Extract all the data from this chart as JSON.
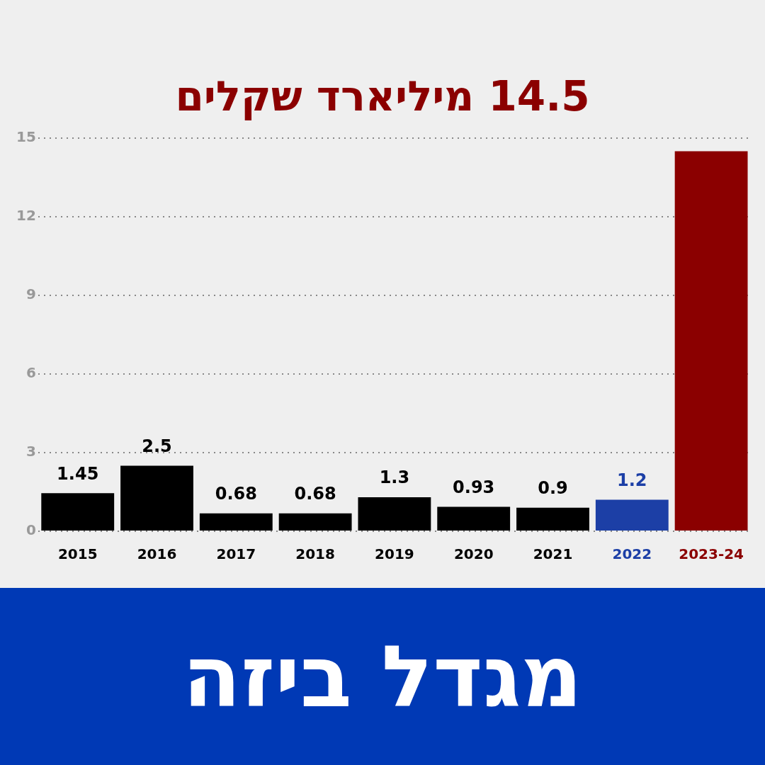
{
  "chart_data": {
    "type": "bar",
    "title": "14.5 מיליארד שקלים",
    "subtitle": "מגדל ביזה",
    "categories": [
      "2015",
      "2016",
      "2017",
      "2018",
      "2019",
      "2020",
      "2021",
      "2022",
      "2023-24"
    ],
    "values": [
      1.45,
      2.5,
      0.68,
      0.68,
      1.3,
      0.93,
      0.9,
      1.2,
      14.5
    ],
    "colors": [
      "#000000",
      "#000000",
      "#000000",
      "#000000",
      "#000000",
      "#000000",
      "#000000",
      "#1c3fa6",
      "#8b0000"
    ],
    "value_labels": [
      "1.45",
      "2.5",
      "0.68",
      "0.68",
      "1.3",
      "0.93",
      "0.9",
      "1.2",
      null
    ],
    "ylim": [
      0,
      15
    ],
    "yticks": [
      0,
      3,
      6,
      9,
      12,
      15
    ],
    "grid": "y",
    "legend": false
  }
}
